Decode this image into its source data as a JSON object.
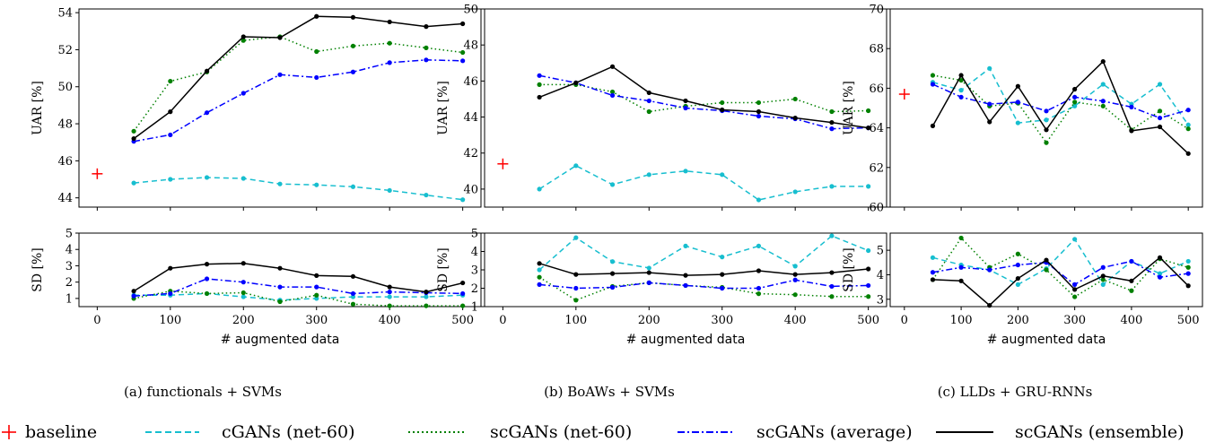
{
  "chart_data": [
    {
      "type": "line",
      "caption": "(a) functionals + SVMs",
      "xlabel": "# augmented data",
      "xticks": [
        0,
        100,
        200,
        300,
        400,
        500
      ],
      "xlim": [
        -25,
        525
      ],
      "x": [
        50,
        100,
        150,
        200,
        250,
        300,
        350,
        400,
        450,
        500
      ],
      "baseline": {
        "x": 0,
        "uar": 45.3
      },
      "uar": {
        "ylabel": "UAR [%]",
        "ylim": [
          43.5,
          54.2
        ],
        "yticks": [
          44,
          46,
          48,
          50,
          52,
          54
        ],
        "series": [
          {
            "key": "cgan",
            "values": [
              44.8,
              45.0,
              45.1,
              45.05,
              44.75,
              44.7,
              44.6,
              44.4,
              44.15,
              43.9
            ]
          },
          {
            "key": "scgan",
            "values": [
              47.6,
              50.3,
              50.8,
              52.5,
              52.7,
              51.9,
              52.2,
              52.35,
              52.1,
              51.85
            ]
          },
          {
            "key": "avg",
            "values": [
              47.05,
              47.4,
              48.6,
              49.65,
              50.65,
              50.5,
              50.8,
              51.3,
              51.45,
              51.4
            ]
          },
          {
            "key": "ens",
            "values": [
              47.2,
              48.65,
              50.85,
              52.7,
              52.65,
              53.8,
              53.75,
              53.5,
              53.25,
              53.4
            ]
          }
        ]
      },
      "sd": {
        "ylabel": "SD [%]",
        "ylim": [
          0.5,
          5
        ],
        "yticks": [
          1,
          2,
          3,
          4,
          5
        ],
        "series": [
          {
            "key": "cgan",
            "values": [
              1.2,
              1.2,
              1.3,
              1.1,
              0.9,
              1.0,
              1.1,
              1.1,
              1.1,
              1.2
            ]
          },
          {
            "key": "scgan",
            "values": [
              1.0,
              1.45,
              1.3,
              1.35,
              0.8,
              1.2,
              0.65,
              0.55,
              0.55,
              0.55
            ]
          },
          {
            "key": "avg",
            "values": [
              1.15,
              1.3,
              2.2,
              2.0,
              1.7,
              1.7,
              1.3,
              1.4,
              1.35,
              1.3
            ]
          },
          {
            "key": "ens",
            "values": [
              1.45,
              2.85,
              3.1,
              3.15,
              2.85,
              2.4,
              2.35,
              1.7,
              1.4,
              1.95
            ]
          }
        ]
      }
    },
    {
      "type": "line",
      "caption": "(b) BoAWs + SVMs",
      "xlabel": "# augmented data",
      "xticks": [
        0,
        100,
        200,
        300,
        400,
        500
      ],
      "xlim": [
        -25,
        525
      ],
      "x": [
        50,
        100,
        150,
        200,
        250,
        300,
        350,
        400,
        450,
        500
      ],
      "baseline": {
        "x": 0,
        "uar": 41.4
      },
      "uar": {
        "ylabel": "UAR [%]",
        "ylim": [
          39,
          50
        ],
        "yticks": [
          40,
          42,
          44,
          46,
          48,
          50
        ],
        "series": [
          {
            "key": "cgan",
            "values": [
              40.0,
              41.3,
              40.25,
              40.8,
              41.0,
              40.8,
              39.4,
              39.85,
              40.15,
              40.15
            ]
          },
          {
            "key": "scgan",
            "values": [
              45.8,
              45.8,
              45.4,
              44.3,
              44.6,
              44.8,
              44.8,
              45.0,
              44.3,
              44.35
            ]
          },
          {
            "key": "avg",
            "values": [
              46.3,
              45.9,
              45.2,
              44.9,
              44.5,
              44.35,
              44.05,
              43.9,
              43.35,
              43.4
            ]
          },
          {
            "key": "ens",
            "values": [
              45.1,
              45.9,
              46.8,
              45.35,
              44.9,
              44.4,
              44.3,
              43.95,
              43.7,
              43.4
            ]
          }
        ]
      },
      "sd": {
        "ylabel": "SD [%]",
        "ylim": [
          1,
          5
        ],
        "yticks": [
          1,
          2,
          3,
          4,
          5
        ],
        "series": [
          {
            "key": "cgan",
            "values": [
              3.0,
              4.75,
              3.45,
              3.1,
              4.3,
              3.7,
              4.3,
              3.2,
              4.85,
              4.05
            ]
          },
          {
            "key": "scgan",
            "values": [
              2.6,
              1.35,
              2.1,
              2.3,
              2.15,
              2.05,
              1.7,
              1.65,
              1.55,
              1.55
            ]
          },
          {
            "key": "avg",
            "values": [
              2.2,
              2.0,
              2.05,
              2.3,
              2.15,
              2.0,
              2.0,
              2.45,
              2.1,
              2.15
            ]
          },
          {
            "key": "ens",
            "values": [
              3.35,
              2.75,
              2.8,
              2.85,
              2.7,
              2.75,
              2.95,
              2.75,
              2.85,
              3.05
            ]
          }
        ]
      }
    },
    {
      "type": "line",
      "caption": "(c) LLDs + GRU-RNNs",
      "xlabel": "# augmented data",
      "xticks": [
        0,
        100,
        200,
        300,
        400,
        500
      ],
      "xlim": [
        -25,
        525
      ],
      "x": [
        50,
        100,
        150,
        200,
        250,
        300,
        350,
        400,
        450,
        500
      ],
      "baseline": {
        "x": 0,
        "uar": 65.7
      },
      "uar": {
        "ylabel": "UAR [%]",
        "ylim": [
          60,
          70
        ],
        "yticks": [
          60,
          62,
          64,
          66,
          68,
          70
        ],
        "series": [
          {
            "key": "cgan",
            "values": [
              66.3,
              65.9,
              67.0,
              64.25,
              64.4,
              65.1,
              66.2,
              65.2,
              66.2,
              64.15
            ]
          },
          {
            "key": "scgan",
            "values": [
              66.65,
              66.4,
              65.1,
              65.25,
              63.25,
              65.3,
              65.1,
              63.9,
              64.85,
              63.95
            ]
          },
          {
            "key": "avg",
            "values": [
              66.2,
              65.55,
              65.2,
              65.3,
              64.85,
              65.55,
              65.35,
              65.05,
              64.5,
              64.9
            ]
          },
          {
            "key": "ens",
            "values": [
              64.1,
              66.65,
              64.3,
              66.1,
              63.9,
              65.95,
              67.35,
              63.85,
              64.05,
              62.7
            ]
          }
        ]
      },
      "sd": {
        "ylabel": "SD [%]",
        "ylim": [
          2.7,
          5.7
        ],
        "yticks": [
          3,
          4,
          5
        ],
        "series": [
          {
            "key": "cgan",
            "values": [
              4.7,
              4.4,
              4.2,
              3.6,
              4.25,
              5.45,
              3.6,
              4.55,
              4.05,
              4.55
            ]
          },
          {
            "key": "scgan",
            "values": [
              3.8,
              5.5,
              4.3,
              4.85,
              4.2,
              3.1,
              3.8,
              3.35,
              4.65,
              4.3
            ]
          },
          {
            "key": "avg",
            "values": [
              4.1,
              4.3,
              4.2,
              4.4,
              4.5,
              3.6,
              4.3,
              4.55,
              3.9,
              4.05
            ]
          },
          {
            "key": "ens",
            "values": [
              3.8,
              3.75,
              2.75,
              3.85,
              4.6,
              3.4,
              3.95,
              3.75,
              4.7,
              3.55
            ]
          }
        ]
      }
    }
  ],
  "legend": [
    {
      "key": "baseline",
      "label": "baseline",
      "color": "#ff0000"
    },
    {
      "key": "cgan",
      "label": "cGANs (net-60)",
      "color": "#17becf"
    },
    {
      "key": "scgan",
      "label": "scGANs (net-60)",
      "color": "#008000"
    },
    {
      "key": "avg",
      "label": "scGANs (average)",
      "color": "#0000ff"
    },
    {
      "key": "ens",
      "label": "scGANs (ensemble)",
      "color": "#000000"
    }
  ]
}
